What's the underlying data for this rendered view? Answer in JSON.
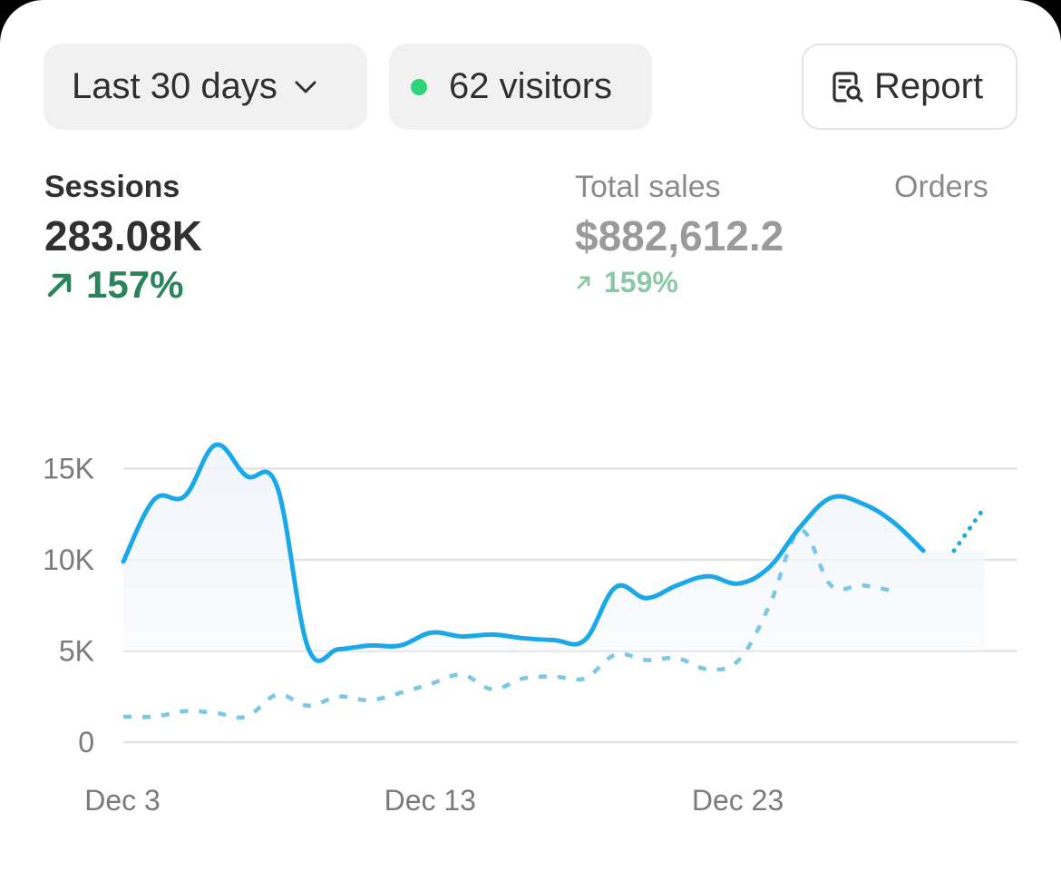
{
  "filters": {
    "range_label": "Last 30 days",
    "visitors_label": "62 visitors",
    "report_label": "Report",
    "live_dot_color": "#2fd47a"
  },
  "metrics": {
    "sessions": {
      "label": "Sessions",
      "value": "283.08K",
      "change": "157%"
    },
    "total_sales": {
      "label": "Total sales",
      "value": "$882,612.2",
      "change": "159%"
    },
    "orders": {
      "label": "Orders"
    }
  },
  "icons": {
    "range": "chevron-down-icon",
    "report": "report-search-icon",
    "change": "arrow-up-right-icon"
  },
  "colors": {
    "current_series": "#1ba8e8",
    "comparison_series": "#7cc6e6",
    "positive": "#29845a",
    "grid": "#e3e3e3"
  },
  "chart_data": {
    "type": "line",
    "x_ticks": [
      "Dec 3",
      "Dec 13",
      "Dec 23"
    ],
    "y_ticks": [
      "0",
      "5K",
      "10K",
      "15K"
    ],
    "ylim": [
      0,
      15000
    ],
    "grid": true,
    "series": [
      {
        "style": "solid",
        "area_fill": true,
        "dates": [
          "Dec 3",
          "Dec 4",
          "Dec 5",
          "Dec 6",
          "Dec 7",
          "Dec 8",
          "Dec 9",
          "Dec 10",
          "Dec 11",
          "Dec 12",
          "Dec 13",
          "Dec 14",
          "Dec 15",
          "Dec 16",
          "Dec 17",
          "Dec 18",
          "Dec 19",
          "Dec 20",
          "Dec 21",
          "Dec 22",
          "Dec 23",
          "Dec 24",
          "Dec 25",
          "Dec 26",
          "Dec 27",
          "Dec 28",
          "Dec 29",
          "Dec 30",
          "Dec 31"
        ],
        "values": [
          9900,
          13300,
          13500,
          16300,
          14600,
          14000,
          5200,
          5100,
          5300,
          5300,
          6000,
          5800,
          5900,
          5700,
          5600,
          5600,
          8500,
          7900,
          8600,
          9100,
          8700,
          9600,
          11800,
          13400,
          13100,
          12100,
          10500,
          null,
          null
        ]
      },
      {
        "style": "dotted",
        "dates": [
          "Dec 30",
          "Dec 31"
        ],
        "values": [
          10500,
          12900
        ]
      },
      {
        "style": "dashed",
        "dates": [
          "Dec 3",
          "Dec 4",
          "Dec 5",
          "Dec 6",
          "Dec 7",
          "Dec 8",
          "Dec 9",
          "Dec 10",
          "Dec 11",
          "Dec 12",
          "Dec 13",
          "Dec 14",
          "Dec 15",
          "Dec 16",
          "Dec 17",
          "Dec 18",
          "Dec 19",
          "Dec 20",
          "Dec 21",
          "Dec 22",
          "Dec 23",
          "Dec 24",
          "Dec 25",
          "Dec 26",
          "Dec 27",
          "Dec 28",
          "Dec 29",
          "Dec 30",
          "Dec 31"
        ],
        "values": [
          1400,
          1400,
          1700,
          1600,
          1400,
          2600,
          2000,
          2500,
          2300,
          2700,
          3200,
          3700,
          2900,
          3500,
          3600,
          3500,
          4800,
          4500,
          4600,
          4000,
          4500,
          7500,
          11600,
          8600,
          8600,
          8300,
          null,
          null,
          null
        ]
      }
    ]
  }
}
